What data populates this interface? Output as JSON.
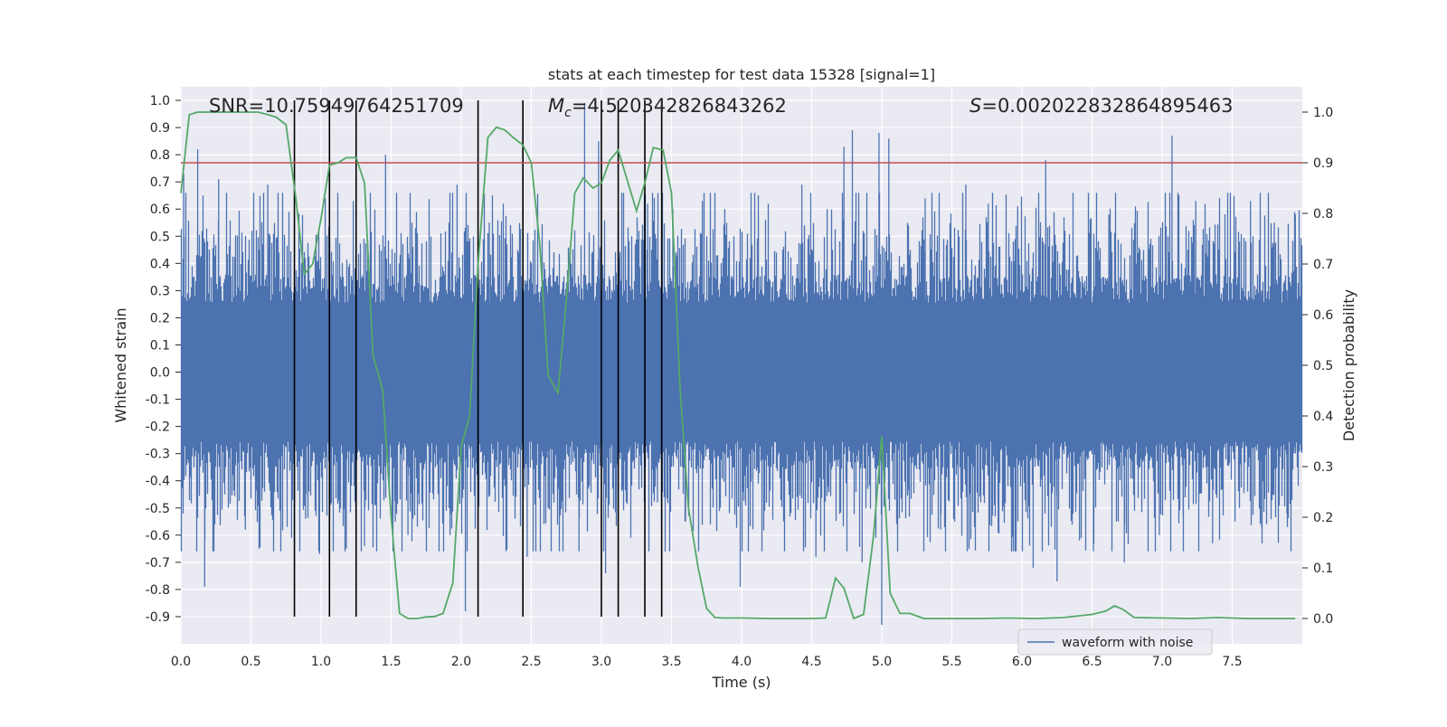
{
  "chart_data": {
    "type": "line",
    "title": "stats at each timestep for test data 15328 [signal=1]",
    "xlabel": "Time (s)",
    "ylabel_left": "Whitened strain",
    "ylabel_right": "Detection probability",
    "xlim": [
      0.0,
      8.0
    ],
    "ylim_left": [
      -1.0,
      1.05
    ],
    "ylim_right": [
      -0.05,
      1.05
    ],
    "x_ticks": [
      "0.0",
      "0.5",
      "1.0",
      "1.5",
      "2.0",
      "2.5",
      "3.0",
      "3.5",
      "4.0",
      "4.5",
      "5.0",
      "5.5",
      "6.0",
      "6.5",
      "7.0",
      "7.5"
    ],
    "x_tick_values": [
      0.0,
      0.5,
      1.0,
      1.5,
      2.0,
      2.5,
      3.0,
      3.5,
      4.0,
      4.5,
      5.0,
      5.5,
      6.0,
      6.5,
      7.0,
      7.5
    ],
    "left_ticks": [
      "1.0",
      "0.9",
      "0.8",
      "0.7",
      "0.6",
      "0.5",
      "0.4",
      "0.3",
      "0.2",
      "0.1",
      "0.0",
      "-0.1",
      "-0.2",
      "-0.3",
      "-0.4",
      "-0.5",
      "-0.6",
      "-0.7",
      "-0.8",
      "-0.9"
    ],
    "left_tick_values": [
      1.0,
      0.9,
      0.8,
      0.7,
      0.6,
      0.5,
      0.4,
      0.3,
      0.2,
      0.1,
      0.0,
      -0.1,
      -0.2,
      -0.3,
      -0.4,
      -0.5,
      -0.6,
      -0.7,
      -0.8,
      -0.9
    ],
    "right_ticks": [
      "1.0",
      "0.9",
      "0.8",
      "0.7",
      "0.6",
      "0.5",
      "0.4",
      "0.3",
      "0.2",
      "0.1",
      "0.0"
    ],
    "right_tick_values": [
      1.0,
      0.9,
      0.8,
      0.7,
      0.6,
      0.5,
      0.4,
      0.3,
      0.2,
      0.1,
      0.0
    ],
    "annotations": {
      "snr": "SNR=10.75949764251709",
      "mc_symbol": "M",
      "mc_sub": "c",
      "mc_value": "=4.520342826843262",
      "s_symbol": "S",
      "s_value": "=0.002022832864895463"
    },
    "threshold": {
      "value": 0.9,
      "axis": "right",
      "color": "#c44e52"
    },
    "legend": {
      "label": "waveform with noise",
      "position": "lower-right"
    },
    "colors": {
      "waveform": "#4c72b0",
      "probability": "#55a868",
      "threshold": "#c44e52",
      "markers": "#000000",
      "background": "#eaeaf2"
    },
    "waveform": {
      "name": "waveform with noise",
      "mean": 0.0,
      "core_amplitude": 0.3,
      "outlier_max": 0.99,
      "outlier_min": -0.93,
      "samples": 8192,
      "duration": 8.0
    },
    "event_markers_x": [
      0.81,
      1.06,
      1.25,
      2.12,
      2.44,
      3.0,
      3.12,
      3.31,
      3.43
    ],
    "event_markers_range": [
      -0.9,
      1.0
    ],
    "probability": {
      "name": "Detection probability",
      "x": [
        0.0,
        0.06,
        0.12,
        0.25,
        0.4,
        0.55,
        0.62,
        0.68,
        0.75,
        0.82,
        0.88,
        0.94,
        1.0,
        1.06,
        1.12,
        1.18,
        1.25,
        1.31,
        1.37,
        1.44,
        1.5,
        1.56,
        1.62,
        1.69,
        1.75,
        1.81,
        1.87,
        1.94,
        2.0,
        2.06,
        2.12,
        2.19,
        2.25,
        2.31,
        2.37,
        2.44,
        2.5,
        2.56,
        2.62,
        2.69,
        2.75,
        2.81,
        2.87,
        2.94,
        3.0,
        3.06,
        3.12,
        3.19,
        3.25,
        3.31,
        3.37,
        3.44,
        3.5,
        3.56,
        3.62,
        3.69,
        3.75,
        3.81,
        3.87,
        3.94,
        4.0,
        4.2,
        4.4,
        4.5,
        4.6,
        4.67,
        4.73,
        4.8,
        4.87,
        4.94,
        5.0,
        5.06,
        5.13,
        5.2,
        5.3,
        5.5,
        5.7,
        5.9,
        6.1,
        6.3,
        6.5,
        6.6,
        6.66,
        6.72,
        6.8,
        7.0,
        7.2,
        7.4,
        7.6,
        7.8,
        7.95
      ],
      "values": [
        0.84,
        0.995,
        1.0,
        1.0,
        1.0,
        1.0,
        0.995,
        0.99,
        0.975,
        0.83,
        0.68,
        0.7,
        0.79,
        0.895,
        0.9,
        0.91,
        0.91,
        0.86,
        0.52,
        0.45,
        0.2,
        0.01,
        0.0,
        0.0,
        0.003,
        0.004,
        0.01,
        0.07,
        0.34,
        0.4,
        0.7,
        0.95,
        0.97,
        0.965,
        0.95,
        0.935,
        0.9,
        0.74,
        0.48,
        0.445,
        0.63,
        0.84,
        0.87,
        0.85,
        0.86,
        0.905,
        0.925,
        0.86,
        0.805,
        0.86,
        0.93,
        0.925,
        0.84,
        0.46,
        0.22,
        0.1,
        0.02,
        0.002,
        0.001,
        0.001,
        0.001,
        0.0,
        0.0,
        0.0,
        0.001,
        0.08,
        0.06,
        0.0,
        0.008,
        0.16,
        0.36,
        0.05,
        0.01,
        0.01,
        0.0,
        0.0,
        0.0,
        0.001,
        0.0,
        0.002,
        0.008,
        0.015,
        0.025,
        0.018,
        0.002,
        0.001,
        0.0,
        0.002,
        0.0,
        0.0,
        0.0
      ]
    },
    "spikes": [
      [
        0.02,
        0.73
      ],
      [
        0.12,
        0.82
      ],
      [
        0.17,
        -0.79
      ],
      [
        0.27,
        0.71
      ],
      [
        0.46,
        -0.58
      ],
      [
        0.62,
        0.69
      ],
      [
        0.79,
        -0.61
      ],
      [
        0.89,
        -0.54
      ],
      [
        0.99,
        -0.67
      ],
      [
        1.03,
        0.64
      ],
      [
        1.18,
        -0.65
      ],
      [
        1.23,
        0.63
      ],
      [
        1.31,
        -0.64
      ],
      [
        1.46,
        0.8
      ],
      [
        1.53,
        -0.55
      ],
      [
        1.62,
        -0.6
      ],
      [
        1.75,
        -0.58
      ],
      [
        1.92,
        -0.6
      ],
      [
        1.97,
        0.69
      ],
      [
        2.03,
        -0.88
      ],
      [
        2.2,
        0.55
      ],
      [
        2.3,
        0.62
      ],
      [
        2.47,
        -0.68
      ],
      [
        2.62,
        -0.5
      ],
      [
        2.84,
        -0.66
      ],
      [
        2.88,
        0.99
      ],
      [
        2.98,
        0.85
      ],
      [
        3.03,
        -0.74
      ],
      [
        3.12,
        0.59
      ],
      [
        3.21,
        -0.61
      ],
      [
        3.33,
        0.62
      ],
      [
        3.4,
        -0.48
      ],
      [
        3.51,
        0.6
      ],
      [
        3.6,
        -0.55
      ],
      [
        3.72,
        0.63
      ],
      [
        3.88,
        0.6
      ],
      [
        3.99,
        -0.79
      ],
      [
        4.12,
        0.58
      ],
      [
        4.3,
        -0.55
      ],
      [
        4.43,
        0.69
      ],
      [
        4.53,
        -0.68
      ],
      [
        4.61,
        0.6
      ],
      [
        4.73,
        0.83
      ],
      [
        4.79,
        0.89
      ],
      [
        4.86,
        -0.7
      ],
      [
        4.98,
        0.88
      ],
      [
        5.0,
        -0.93
      ],
      [
        5.05,
        0.86
      ],
      [
        5.19,
        0.54
      ],
      [
        5.31,
        0.64
      ],
      [
        5.42,
        -0.58
      ],
      [
        5.52,
        -0.55
      ],
      [
        5.6,
        0.69
      ],
      [
        5.76,
        0.62
      ],
      [
        5.83,
        -0.59
      ],
      [
        5.97,
        0.61
      ],
      [
        6.08,
        -0.72
      ],
      [
        6.17,
        0.78
      ],
      [
        6.25,
        -0.77
      ],
      [
        6.3,
        0.57
      ],
      [
        6.41,
        -0.62
      ],
      [
        6.51,
        -0.66
      ],
      [
        6.62,
        0.58
      ],
      [
        6.73,
        -0.7
      ],
      [
        6.81,
        0.61
      ],
      [
        6.98,
        -0.6
      ],
      [
        7.07,
        0.87
      ],
      [
        7.15,
        -0.53
      ],
      [
        7.24,
        0.63
      ],
      [
        7.36,
        -0.63
      ],
      [
        7.41,
        0.64
      ],
      [
        7.52,
        -0.55
      ],
      [
        7.63,
        0.63
      ],
      [
        7.71,
        -0.57
      ],
      [
        7.8,
        0.55
      ],
      [
        7.89,
        -0.52
      ],
      [
        7.95,
        0.58
      ]
    ]
  }
}
